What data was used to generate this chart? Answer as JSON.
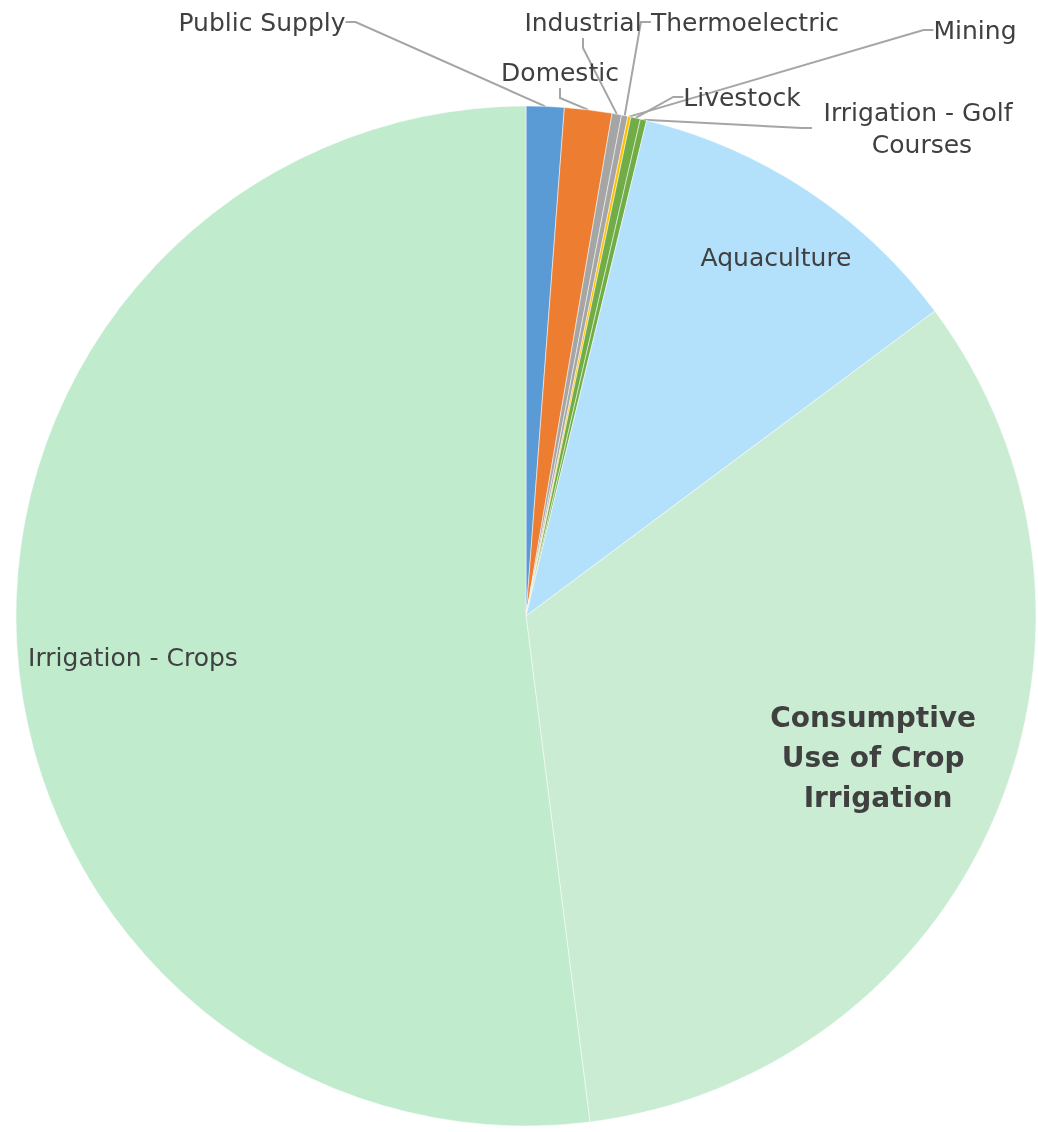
{
  "chart_data": {
    "type": "pie",
    "categories": [
      "Public Supply",
      "Domestic",
      "Industrial",
      "Thermoelectric",
      "Mining",
      "Livestock",
      "Irrigation - Golf Courses",
      "Aquaculture",
      "Consumptive Use of Crop Irrigation",
      "Irrigation - Crops"
    ],
    "values": [
      1.2,
      1.5,
      0.3,
      0.2,
      0.1,
      0.3,
      0.2,
      11.0,
      33.2,
      52.0
    ],
    "colors": [
      "#5b9bd5",
      "#ed7d31",
      "#a5a5a5",
      "#a5a5a5",
      "#ffc000",
      "#70ad47",
      "#70ad47",
      "#b3e1fc",
      "#c9ecd3",
      "#c0ebcd"
    ]
  }
}
